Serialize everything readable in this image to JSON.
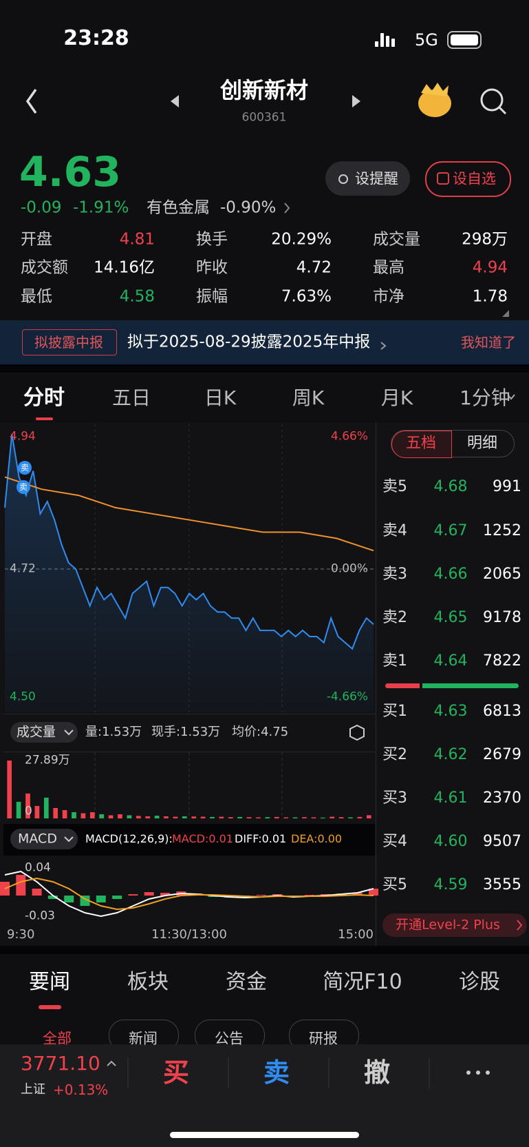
{
  "status_bar": {
    "time": "23:28",
    "network": "5G"
  },
  "header": {
    "title": "创新新材",
    "code": "600361"
  },
  "quote": {
    "price": "4.63",
    "change": "-0.09",
    "change_pct": "-1.91%",
    "sector": "有色金属",
    "sector_change": "-0.90%",
    "buttons": [
      "设提醒",
      "设自选"
    ]
  },
  "stats": [
    [
      {
        "label": "开盘",
        "value": "4.81",
        "color": "#f0424c"
      },
      {
        "label": "换手",
        "value": "20.29%"
      },
      {
        "label": "成交量",
        "value": "298万"
      }
    ],
    [
      {
        "label": "成交额",
        "value": "14.16亿"
      },
      {
        "label": "昨收",
        "value": "4.72"
      },
      {
        "label": "最高",
        "value": "4.94",
        "color": "#f0424c"
      }
    ],
    [
      {
        "label": "最低",
        "value": "4.58",
        "color": "#22b35e"
      },
      {
        "label": "振幅",
        "value": "7.63%"
      },
      {
        "label": "市净",
        "value": "1.78"
      }
    ]
  ],
  "banner": {
    "tag": "拟披露中报",
    "text": "拟于2025-08-29披露2025年中报",
    "dismiss": "我知道了"
  },
  "chart_tabs": [
    "分时",
    "五日",
    "日K",
    "周K",
    "月K",
    "1分钟"
  ],
  "chart_data": [
    {
      "type": "line",
      "series": [
        {
          "color": "#2f8cf0",
          "values": [
            4.82,
            4.94,
            4.87,
            4.84,
            4.88,
            4.81,
            4.83,
            4.8,
            4.76,
            4.73,
            4.72,
            4.69,
            4.66,
            4.69,
            4.67,
            4.68,
            4.66,
            4.64,
            4.68,
            4.69,
            4.7,
            4.66,
            4.69,
            4.69,
            4.68,
            4.66,
            4.68,
            4.67,
            4.68,
            4.66,
            4.65,
            4.65,
            4.64,
            4.64,
            4.62,
            4.64,
            4.62,
            4.62,
            4.62,
            4.61,
            4.62,
            4.61,
            4.62,
            4.61,
            4.61,
            4.6,
            4.64,
            4.61,
            4.6,
            4.59,
            4.62,
            4.64,
            4.63
          ]
        },
        {
          "color": "#f0922c",
          "values": [
            4.87,
            4.85,
            4.84,
            4.82,
            4.81,
            4.8,
            4.79,
            4.78,
            4.78,
            4.77,
            4.75
          ]
        }
      ],
      "ylim": [
        4.5,
        4.94
      ],
      "yticks": [
        4.94,
        4.72,
        {
          "value": 4.5,
          "label": "4.50"
        }
      ],
      "y2lim": [
        -4.66,
        4.66
      ],
      "y2ticks": [
        {
          "value": 4.66,
          "label": "4.66%"
        },
        {
          "value": 0,
          "label": "0.00%"
        },
        {
          "value": -4.66,
          "label": "-4.66%"
        }
      ],
      "trade_marks": [
        "卖",
        "卖"
      ],
      "time_labels": [
        "9:30",
        "11:30/13:00",
        "15:00"
      ]
    },
    {
      "type": "bar",
      "selector": "成交量",
      "info": [
        "量:1.53万",
        "现手:1.53万",
        "均价:4.75"
      ],
      "values": [
        27.89,
        8,
        12,
        6,
        10,
        5,
        4,
        3,
        2.5,
        3,
        2,
        1.5,
        2,
        1.5,
        1.2,
        1,
        1.3,
        1,
        0.8,
        1,
        0.9,
        0.8,
        0.7,
        0.8,
        0.6,
        0.7,
        0.6,
        0.5,
        0.6,
        0.7,
        0.5,
        0.5,
        0.6,
        0.5,
        0.4,
        0.8,
        0.6,
        0.5,
        0.7,
        1.53
      ],
      "ylim": [
        0,
        27.89
      ],
      "yticks": [
        {
          "value": 27.89,
          "label": "27.89万"
        },
        0
      ]
    },
    {
      "type": "macd",
      "selector": "MACD",
      "params": "MACD(12,26,9):",
      "series": [
        {
          "label": "MACD:0.01",
          "color": "#f0424c",
          "values": [
            0.02,
            0.03,
            0.01,
            -0.005,
            -0.01,
            -0.015,
            -0.01,
            -0.005,
            0.002,
            0.005,
            0.004,
            0.006,
            0.003,
            -0.002,
            -0.003,
            -0.002,
            0.001,
            0.002,
            -0.001,
            0.001,
            0.002,
            0.003,
            0.004,
            0.01
          ]
        },
        {
          "label": "DIFF:0.01",
          "color": "#ffffff",
          "values": [
            0.03,
            0.035,
            0.02,
            0,
            -0.015,
            -0.025,
            -0.03,
            -0.025,
            -0.015,
            -0.005,
            0,
            0.003,
            0.002,
            0,
            -0.002,
            -0.003,
            -0.002,
            0,
            -0.002,
            -0.001,
            0,
            0.002,
            0.004,
            0.01
          ]
        },
        {
          "label": "DEA:0.00",
          "color": "#f0a020",
          "values": [
            0.01,
            0.02,
            0.025,
            0.02,
            0.01,
            -0.005,
            -0.015,
            -0.02,
            -0.018,
            -0.012,
            -0.005,
            0,
            0.001,
            0.001,
            0,
            -0.001,
            -0.002,
            -0.001,
            -0.001,
            -0.001,
            -0.001,
            0,
            0.001,
            0
          ]
        }
      ],
      "ylim": [
        -0.03,
        0.04
      ],
      "yticks": [
        0.04,
        -0.03
      ]
    }
  ],
  "order_book": {
    "tabs": [
      "五档",
      "明细"
    ],
    "asks": [
      {
        "label": "卖5",
        "price": "4.68",
        "volume": "991"
      },
      {
        "label": "卖4",
        "price": "4.67",
        "volume": "1252"
      },
      {
        "label": "卖3",
        "price": "4.66",
        "volume": "2065"
      },
      {
        "label": "卖2",
        "price": "4.65",
        "volume": "9178"
      },
      {
        "label": "卖1",
        "price": "4.64",
        "volume": "7822"
      }
    ],
    "bids": [
      {
        "label": "买1",
        "price": "4.63",
        "volume": "6813"
      },
      {
        "label": "买2",
        "price": "4.62",
        "volume": "2679"
      },
      {
        "label": "买3",
        "price": "4.61",
        "volume": "2370"
      },
      {
        "label": "买4",
        "price": "4.60",
        "volume": "9507"
      },
      {
        "label": "买5",
        "price": "4.59",
        "volume": "3555"
      }
    ],
    "upgrade": "开通Level-2 Plus"
  },
  "news_tabs": [
    "要闻",
    "板块",
    "资金",
    "简况F10",
    "诊股"
  ],
  "news_subtabs": [
    "全部",
    "新闻",
    "公告",
    "研报"
  ],
  "bottom_bar": {
    "index_value": "3771.10",
    "index_name": "上证",
    "index_change": "+0.13%",
    "actions": [
      "买",
      "卖",
      "撤"
    ]
  }
}
